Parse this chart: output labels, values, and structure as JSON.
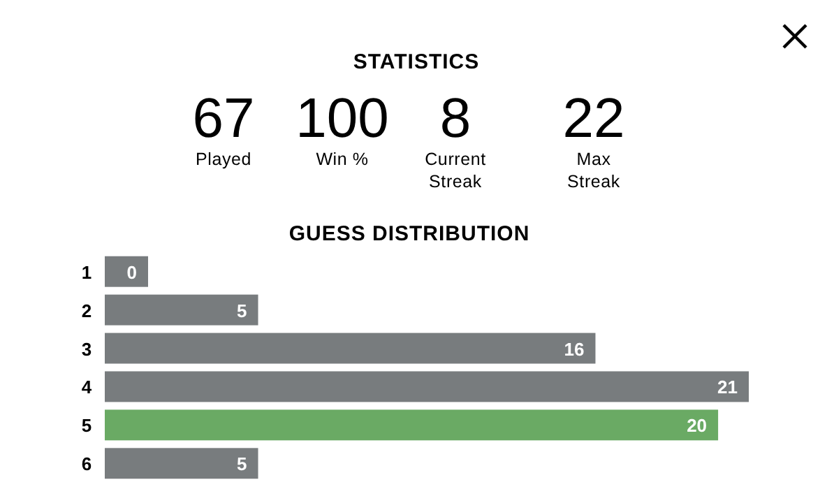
{
  "chart_data": [
    {
      "type": "other",
      "title": "STATISTICS",
      "categories": [
        "Played",
        "Win %",
        "Current Streak",
        "Max Streak"
      ],
      "values": [
        67,
        100,
        8,
        22
      ],
      "data_labels": true
    },
    {
      "type": "bar",
      "orientation": "horizontal",
      "title": "GUESS DISTRIBUTION",
      "categories": [
        "1",
        "2",
        "3",
        "4",
        "5",
        "6"
      ],
      "values": [
        0,
        5,
        16,
        21,
        20,
        5
      ],
      "colors": [
        "#787c7e",
        "#787c7e",
        "#787c7e",
        "#787c7e",
        "#6aaa64",
        "#787c7e"
      ],
      "data_labels": true
    }
  ]
}
